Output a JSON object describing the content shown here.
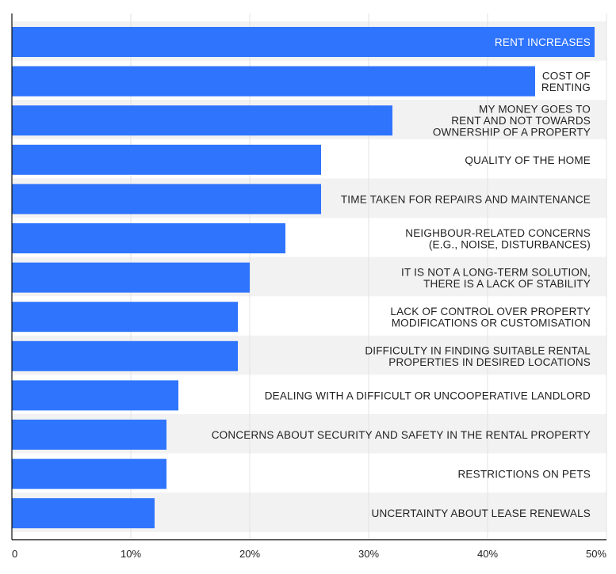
{
  "chart_data": {
    "type": "bar",
    "orientation": "horizontal",
    "title": "",
    "xlabel": "",
    "ylabel": "",
    "xlim": [
      0,
      50
    ],
    "x_ticks": [
      "0",
      "10%",
      "20%",
      "30%",
      "40%",
      "50%"
    ],
    "x_tick_values": [
      0,
      10,
      20,
      30,
      40,
      50
    ],
    "grid": true,
    "legend": "none",
    "bar_color": "#2f74fd",
    "band_color": "#f2f2f2",
    "categories": [
      [
        "RENT INCREASES"
      ],
      [
        "COST OF",
        "RENTING"
      ],
      [
        "MY MONEY GOES TO",
        "RENT AND NOT TOWARDS",
        "OWNERSHIP OF A PROPERTY"
      ],
      [
        "QUALITY OF THE HOME"
      ],
      [
        "TIME TAKEN FOR REPAIRS AND MAINTENANCE"
      ],
      [
        "NEIGHBOUR-RELATED CONCERNS",
        "(E.G., NOISE, DISTURBANCES)"
      ],
      [
        "IT IS NOT A LONG-TERM SOLUTION,",
        "THERE IS A LACK OF STABILITY"
      ],
      [
        "LACK OF CONTROL OVER PROPERTY",
        "MODIFICATIONS OR CUSTOMISATION"
      ],
      [
        "DIFFICULTY IN FINDING SUITABLE RENTAL",
        "PROPERTIES IN DESIRED LOCATIONS"
      ],
      [
        "DEALING WITH A DIFFICULT OR UNCOOPERATIVE LANDLORD"
      ],
      [
        "CONCERNS ABOUT SECURITY AND SAFETY IN THE RENTAL PROPERTY"
      ],
      [
        "RESTRICTIONS ON PETS"
      ],
      [
        "UNCERTAINTY ABOUT LEASE RENEWALS"
      ]
    ],
    "values": [
      49,
      44,
      32,
      26,
      26,
      23,
      20,
      19,
      19,
      14,
      13,
      13,
      12
    ],
    "label_inside": [
      true,
      false,
      false,
      false,
      false,
      false,
      false,
      false,
      false,
      false,
      false,
      false,
      false
    ]
  }
}
